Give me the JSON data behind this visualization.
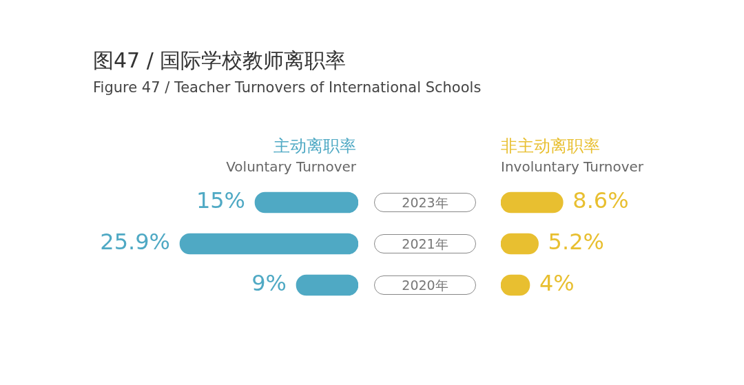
{
  "chart_data": [
    {
      "type": "other",
      "title": "图47 / 国际学校教师离职率",
      "subtitle": "Figure 47 / Teacher Turnovers of International Schools"
    },
    {
      "type": "bar",
      "orientation": "horizontal",
      "title": "主动离职率",
      "subtitle": "Voluntary Turnover",
      "categories": [
        "2023年",
        "2021年",
        "2020年"
      ],
      "values": [
        15,
        25.9,
        9
      ],
      "value_labels": [
        "15%",
        "25.9%",
        "9%"
      ],
      "color": "#4fa9c4",
      "tick_labels": "y"
    },
    {
      "type": "bar",
      "orientation": "horizontal",
      "title": "非主动离职率",
      "subtitle": "Involuntary Turnover",
      "categories": [
        null,
        null,
        null
      ],
      "values": [
        8.6,
        5.2,
        4
      ],
      "value_labels": [
        "8.6%",
        "5.2%",
        "4%"
      ],
      "color": "#e8bf30",
      "tick_labels": false
    }
  ]
}
